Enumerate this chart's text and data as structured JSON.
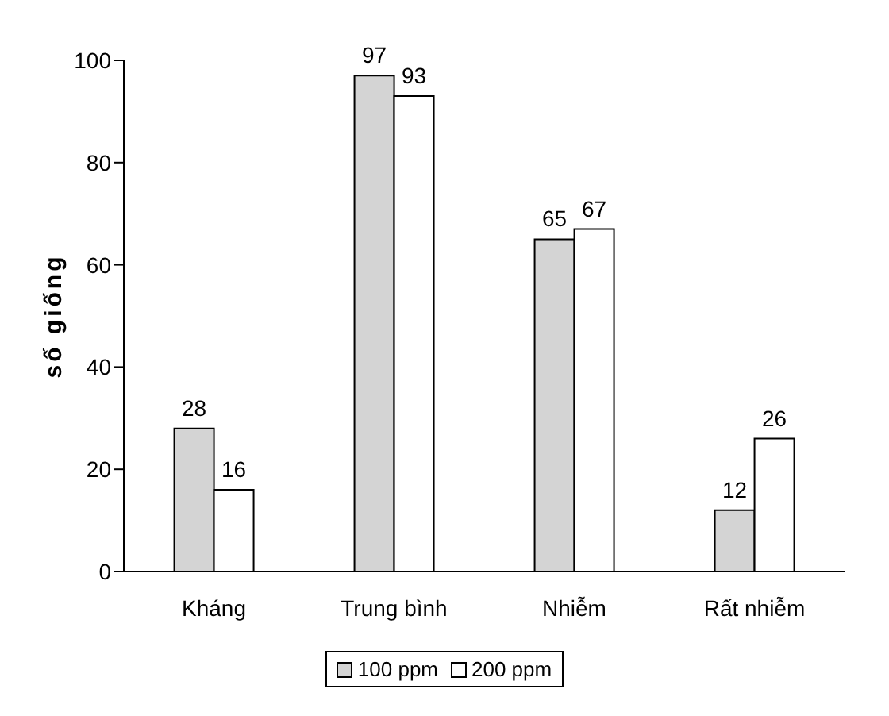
{
  "chart_data": {
    "type": "bar",
    "ylabel": "số giống",
    "categories": [
      "Kháng",
      "Trung bình",
      "Nhiễm",
      "Rất nhiễm"
    ],
    "series": [
      {
        "name": "100 ppm",
        "color": "#d4d4d4",
        "values": [
          28,
          97,
          65,
          12
        ]
      },
      {
        "name": "200 ppm",
        "color": "#ffffff",
        "values": [
          16,
          93,
          67,
          26
        ]
      }
    ],
    "ylim": [
      0,
      100
    ],
    "yticks": [
      0,
      20,
      40,
      60,
      80,
      100
    ],
    "data_labels": true,
    "legend": "bottom",
    "grid": false
  }
}
